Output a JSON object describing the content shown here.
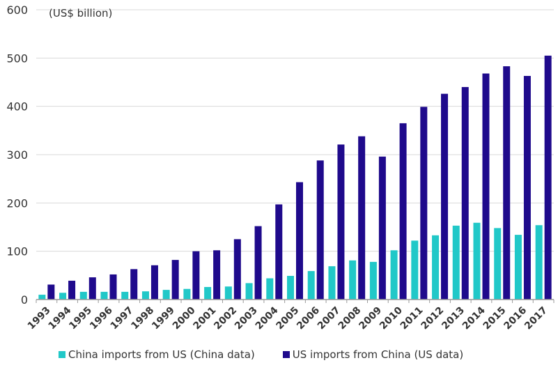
{
  "chart_data": {
    "type": "bar",
    "title": "",
    "unit_label": "(US$ billion)",
    "xlabel": "",
    "ylabel": "",
    "ylim": [
      0,
      600
    ],
    "yticks": [
      "0",
      "100",
      "200",
      "300",
      "400",
      "500",
      "600"
    ],
    "categories": [
      "1993",
      "1994",
      "1995",
      "1996",
      "1997",
      "1998",
      "1999",
      "2000",
      "2001",
      "2002",
      "2003",
      "2004",
      "2005",
      "2006",
      "2007",
      "2008",
      "2009",
      "2010",
      "2011",
      "2012",
      "2013",
      "2014",
      "2015",
      "2016",
      "2017"
    ],
    "series": [
      {
        "name": "China imports from US (China data)",
        "color": "#21c8c8",
        "values": [
          10,
          14,
          16,
          16,
          16,
          17,
          20,
          22,
          26,
          27,
          34,
          44,
          49,
          59,
          69,
          81,
          78,
          102,
          122,
          133,
          153,
          159,
          148,
          134,
          154
        ]
      },
      {
        "name": "US imports from China (US data)",
        "color": "#1f0a8c",
        "values": [
          31,
          39,
          46,
          52,
          63,
          71,
          82,
          100,
          102,
          125,
          152,
          197,
          243,
          288,
          321,
          338,
          296,
          365,
          399,
          426,
          440,
          468,
          483,
          463,
          505
        ]
      }
    ],
    "legend": "bottom"
  }
}
